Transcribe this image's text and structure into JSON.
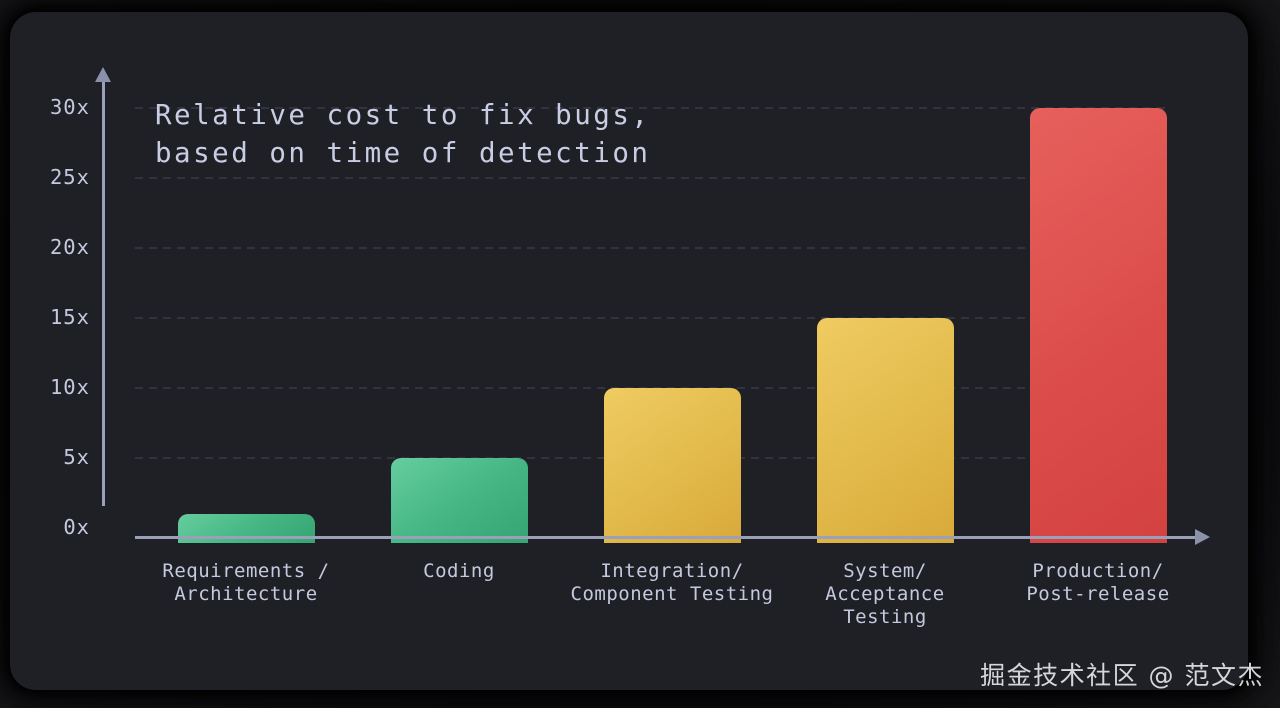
{
  "title": {
    "line1": "Relative cost to fix bugs,",
    "line2": "based on time of detection"
  },
  "watermark": "掘金技术社区 @ 范文杰",
  "colors": {
    "card_bg": "#1e2026",
    "text": "#c4c9de",
    "axis": "#9aa0b8",
    "gridline": "#31343e",
    "green": "#44b583",
    "yellow": "#e2ba4b",
    "red": "#da4b49"
  },
  "chart_data": {
    "type": "bar",
    "title": "Relative cost to fix bugs, based on time of detection",
    "categories": [
      "Requirements /\nArchitecture",
      "Coding",
      "Integration/\nComponent Testing",
      "System/\nAcceptance\nTesting",
      "Production/\nPost-release"
    ],
    "values": [
      1,
      5,
      10,
      15,
      30
    ],
    "bar_color_names": [
      "green",
      "green",
      "yellow",
      "yellow",
      "red"
    ],
    "ytick_labels": [
      "0x",
      "5x",
      "10x",
      "15x",
      "20x",
      "25x",
      "30x"
    ],
    "ytick_values": [
      0,
      5,
      10,
      15,
      20,
      25,
      30
    ],
    "ylim": [
      0,
      32
    ],
    "xlabel": "",
    "ylabel": "",
    "grid": "horizontal-dashed",
    "legend": "none"
  }
}
